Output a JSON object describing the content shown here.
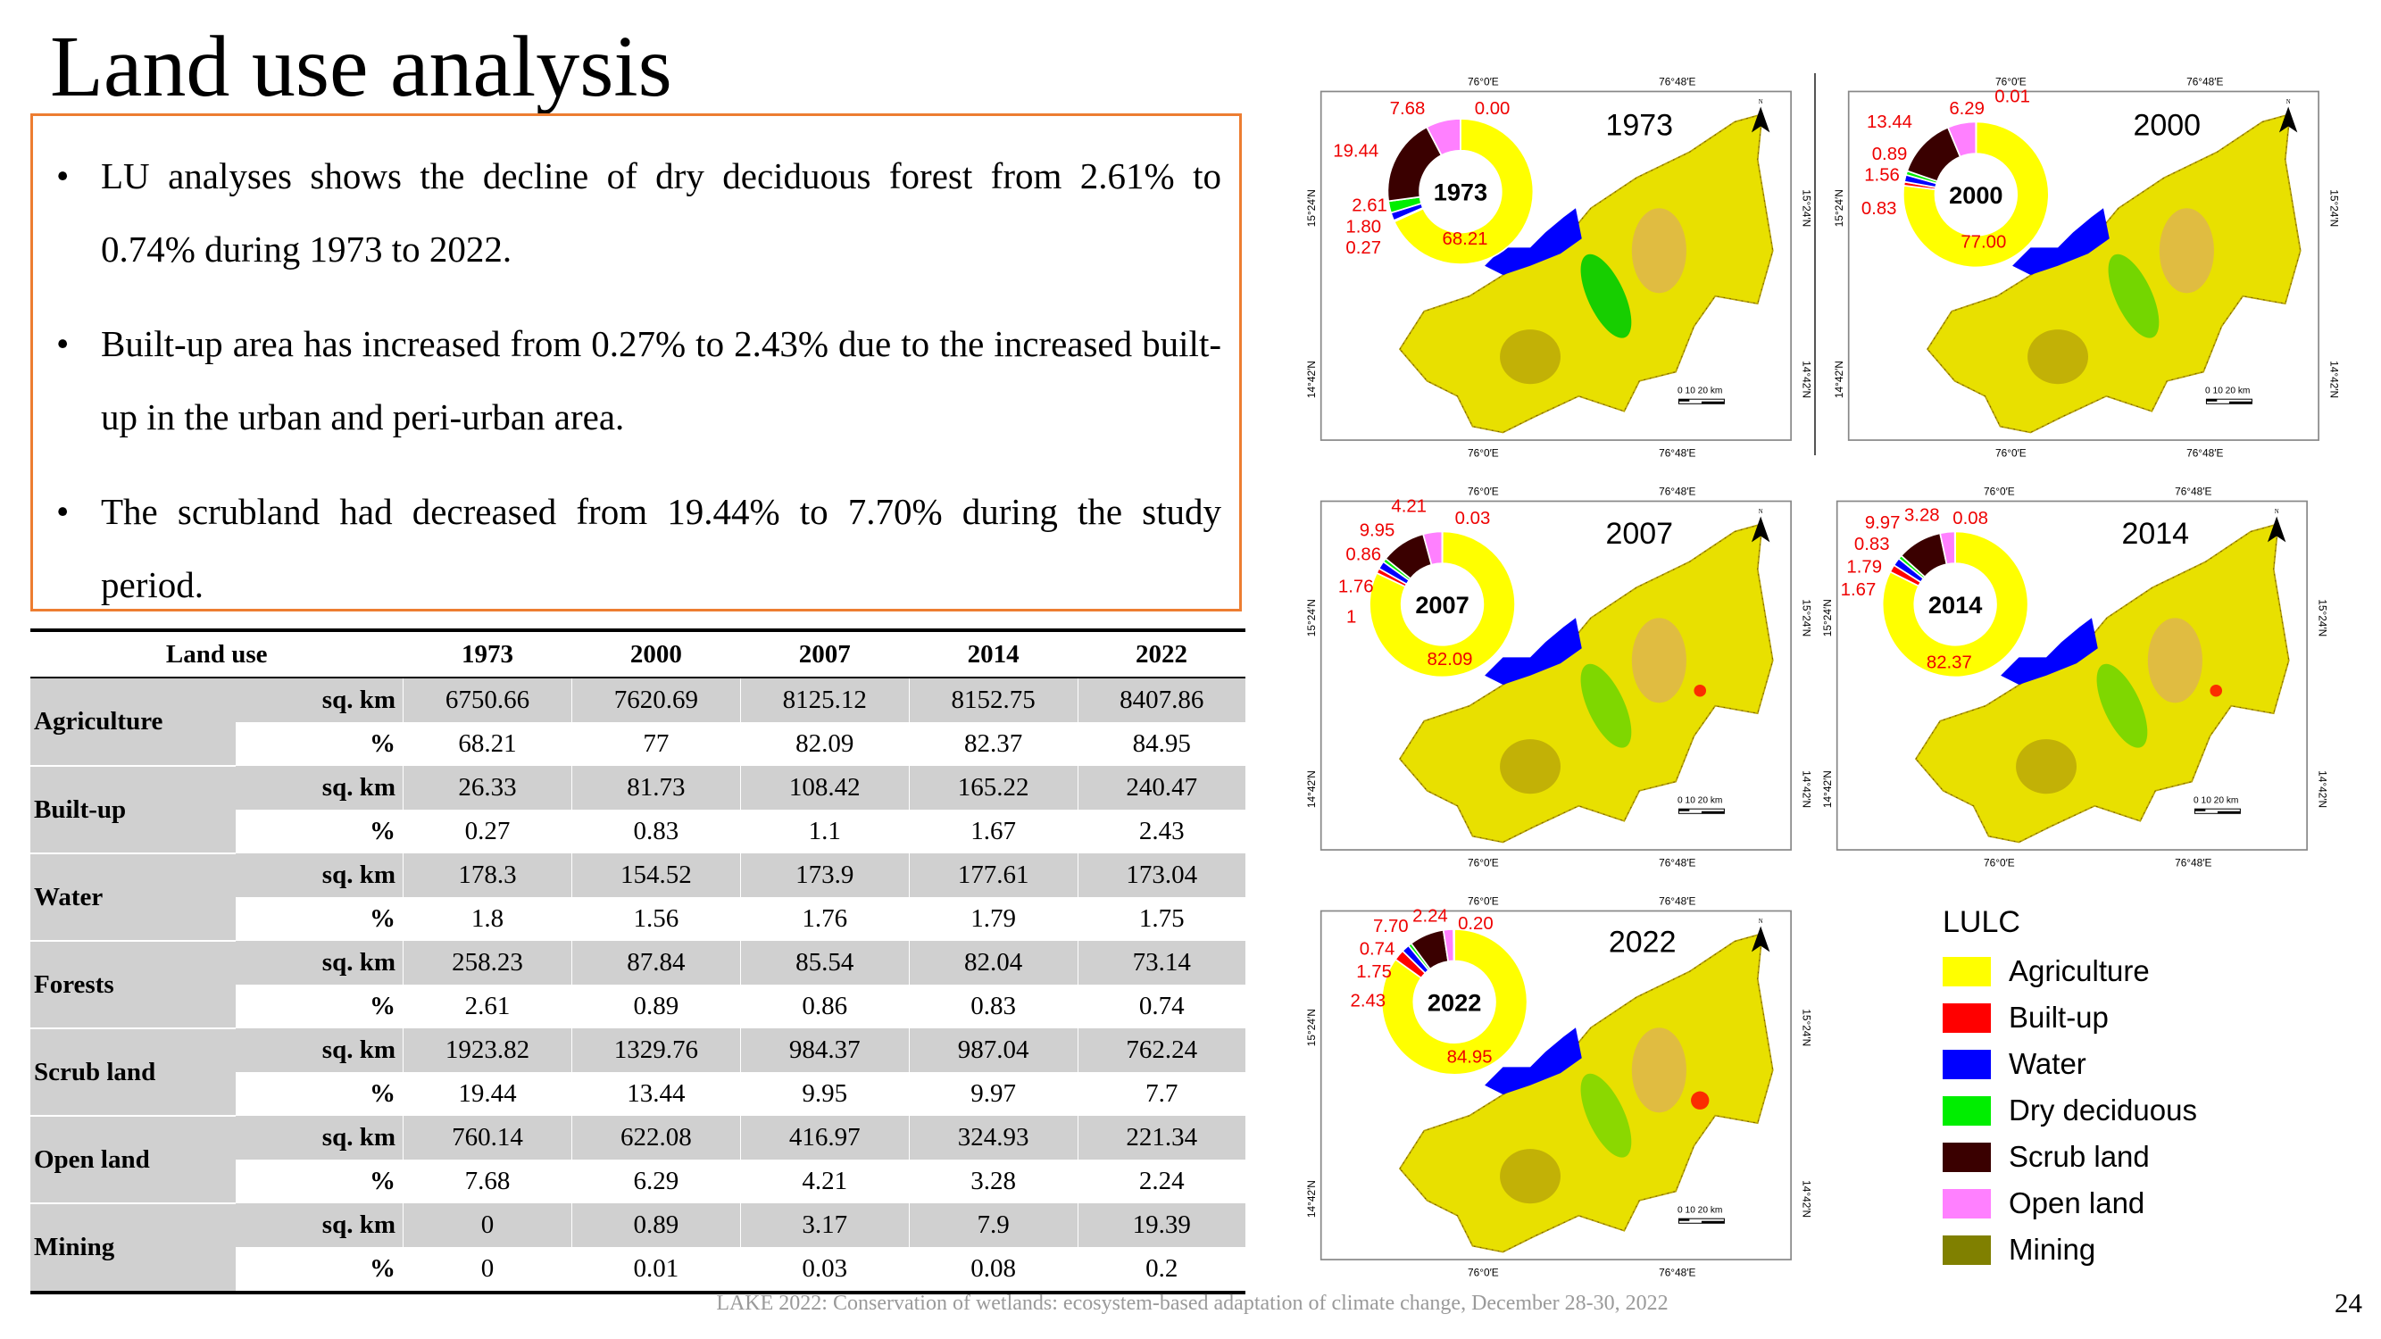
{
  "title": "Land use analysis",
  "bullets": [
    "LU analyses shows the decline of dry deciduous forest from 2.61% to 0.74% during 1973 to 2022.",
    "Built-up area has increased from 0.27% to 2.43% due to the increased built-up in the urban and peri-urban area.",
    "The scrubland had decreased from 19.44% to 7.70% during the study period."
  ],
  "bullet_symbol": "•",
  "table": {
    "header": [
      "Land use",
      "1973",
      "2000",
      "2007",
      "2014",
      "2022"
    ],
    "unit_sq": "sq. km",
    "unit_pct": "%",
    "rows": [
      {
        "label": "Agriculture",
        "sq": [
          "6750.66",
          "7620.69",
          "8125.12",
          "8152.75",
          "8407.86"
        ],
        "pct": [
          "68.21",
          "77",
          "82.09",
          "82.37",
          "84.95"
        ]
      },
      {
        "label": "Built-up",
        "sq": [
          "26.33",
          "81.73",
          "108.42",
          "165.22",
          "240.47"
        ],
        "pct": [
          "0.27",
          "0.83",
          "1.1",
          "1.67",
          "2.43"
        ]
      },
      {
        "label": "Water",
        "sq": [
          "178.3",
          "154.52",
          "173.9",
          "177.61",
          "173.04"
        ],
        "pct": [
          "1.8",
          "1.56",
          "1.76",
          "1.79",
          "1.75"
        ]
      },
      {
        "label": "Forests",
        "sq": [
          "258.23",
          "87.84",
          "85.54",
          "82.04",
          "73.14"
        ],
        "pct": [
          "2.61",
          "0.89",
          "0.86",
          "0.83",
          "0.74"
        ]
      },
      {
        "label": "Scrub land",
        "sq": [
          "1923.82",
          "1329.76",
          "984.37",
          "987.04",
          "762.24"
        ],
        "pct": [
          "19.44",
          "13.44",
          "9.95",
          "9.97",
          "7.7"
        ]
      },
      {
        "label": "Open land",
        "sq": [
          "760.14",
          "622.08",
          "416.97",
          "324.93",
          "221.34"
        ],
        "pct": [
          "7.68",
          "6.29",
          "4.21",
          "3.28",
          "2.24"
        ]
      },
      {
        "label": "Mining",
        "sq": [
          "0",
          "0.89",
          "3.17",
          "7.9",
          "19.39"
        ],
        "pct": [
          "0",
          "0.01",
          "0.03",
          "0.08",
          "0.2"
        ]
      }
    ]
  },
  "map_common": {
    "lon_labels": [
      "76°0′E",
      "76°48′E"
    ],
    "lat_labels": [
      "15°24′N",
      "14°42′N"
    ],
    "scale_label": "0  10  20 km",
    "north_label": "N"
  },
  "maps": [
    {
      "year": "1973",
      "donut_values": [
        68.21,
        0.27,
        1.8,
        2.61,
        19.44,
        7.68,
        0.0
      ],
      "donut_labels": [
        "68.21",
        "0.27",
        "1.80",
        "2.61",
        "19.44",
        "7.68",
        "0.00"
      ]
    },
    {
      "year": "2000",
      "donut_values": [
        77.0,
        0.83,
        1.56,
        0.89,
        13.44,
        6.29,
        0.01
      ],
      "donut_labels": [
        "77.00",
        "0.83",
        "1.56",
        "0.89",
        "13.44",
        "6.29",
        "0.01"
      ]
    },
    {
      "year": "2007",
      "donut_values": [
        82.09,
        1.1,
        1.76,
        0.86,
        9.95,
        4.21,
        0.03
      ],
      "donut_labels": [
        "82.09",
        "1",
        "1.76",
        "0.86",
        "9.95",
        "4.21",
        "0.03"
      ]
    },
    {
      "year": "2014",
      "donut_values": [
        82.37,
        1.67,
        1.79,
        0.83,
        9.97,
        3.28,
        0.08
      ],
      "donut_labels": [
        "82.37",
        "1.67",
        "1.79",
        "0.83",
        "9.97",
        "3.28",
        "0.08"
      ]
    },
    {
      "year": "2022",
      "donut_values": [
        84.95,
        2.43,
        1.75,
        0.74,
        7.7,
        2.24,
        0.2
      ],
      "donut_labels": [
        "84.95",
        "2.43",
        "1.75",
        "0.74",
        "7.70",
        "2.24",
        "0.20"
      ]
    }
  ],
  "legend": {
    "title": "LULC",
    "items": [
      {
        "label": "Agriculture",
        "color": "#ffff00"
      },
      {
        "label": "Built-up",
        "color": "#ff0000"
      },
      {
        "label": "Water",
        "color": "#0000ff"
      },
      {
        "label": "Dry deciduous",
        "color": "#00ee00"
      },
      {
        "label": "Scrub land",
        "color": "#3a0000"
      },
      {
        "label": "Open land",
        "color": "#ff80ff"
      },
      {
        "label": "Mining",
        "color": "#808000"
      }
    ]
  },
  "footer": "LAKE 2022: Conservation of wetlands: ecosystem-based adaptation of climate change, December 28-30, 2022",
  "page_number": "24"
}
